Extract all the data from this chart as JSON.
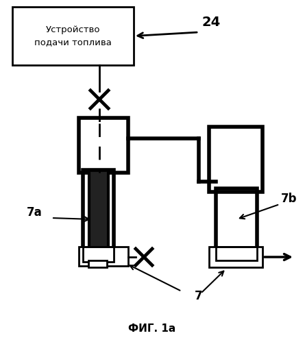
{
  "title": "ФИГ. 1а",
  "label_24": "24",
  "label_7a": "7a",
  "label_7b": "7b",
  "label_7": "7",
  "box_text": "Устройство\nподачи топлива",
  "bg_color": "#ffffff",
  "line_color": "#000000",
  "box_fill": "#ffffff",
  "figsize": [
    4.45,
    4.99
  ],
  "dpi": 100
}
